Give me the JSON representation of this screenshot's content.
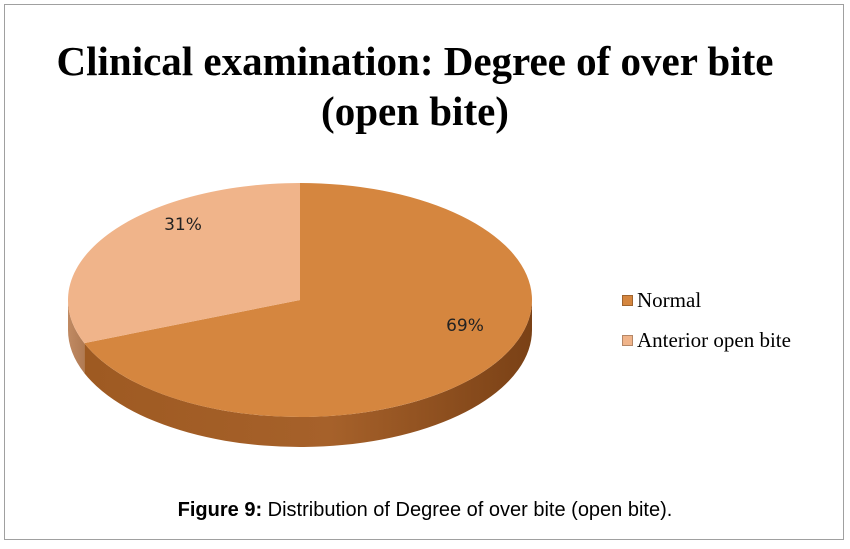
{
  "chart_data": {
    "type": "pie",
    "title": "Clinical examination: Degree of over bite (open bite)",
    "categories": [
      "Normal",
      "Anterior open bite"
    ],
    "values": [
      69,
      31
    ],
    "labels": [
      "69%",
      "31%"
    ],
    "colors": [
      "#d5863f",
      "#f0b48a"
    ],
    "legend_position": "right",
    "style": "3d"
  },
  "caption": {
    "label": "Figure 9:",
    "text": " Distribution of Degree of over bite (open bite)."
  }
}
